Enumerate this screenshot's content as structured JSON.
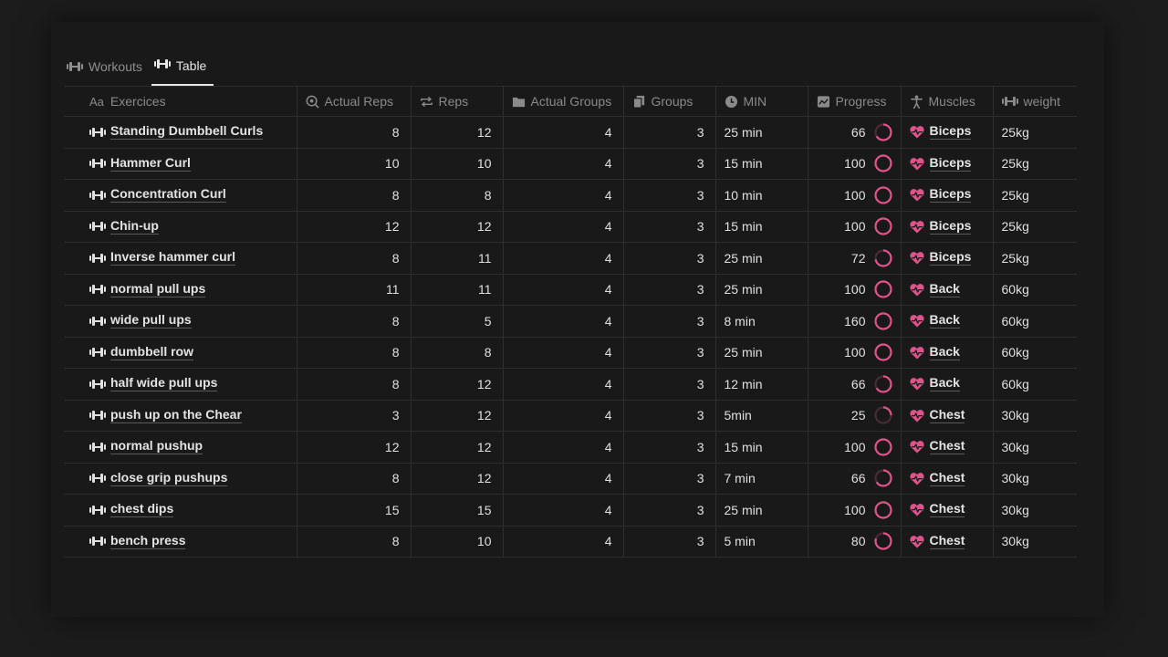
{
  "tabs": [
    {
      "label": "Workouts",
      "icon": "dumbbell-icon",
      "active": false
    },
    {
      "label": "Table",
      "icon": "dumbbell-icon",
      "active": true
    }
  ],
  "columns": {
    "name": {
      "prefix": "Aa",
      "label": "Exercices"
    },
    "actual_reps": {
      "label": "Actual Reps",
      "icon": "target-search-icon"
    },
    "reps": {
      "label": "Reps",
      "icon": "repeat-icon"
    },
    "actual_groups": {
      "label": "Actual Groups",
      "icon": "folder-icon"
    },
    "groups": {
      "label": "Groups",
      "icon": "copy-files-icon"
    },
    "min": {
      "label": "MIN",
      "icon": "clock-icon"
    },
    "progress": {
      "label": "Progress",
      "icon": "chart-box-icon"
    },
    "muscles": {
      "label": "Muscles",
      "icon": "person-icon"
    },
    "weight": {
      "label": "weight",
      "icon": "dumbbell-icon"
    }
  },
  "colors": {
    "accent_pink": "#e0538a",
    "ring_track": "#4a2a36"
  },
  "rows": [
    {
      "name": " Standing Dumbbell Curls",
      "actual_reps": "8",
      "reps": "12",
      "actual_groups": "4",
      "groups": "3",
      "min": "25  min",
      "progress": "66",
      "progress_fraction": 0.66,
      "muscle": "Biceps",
      "weight": "25kg"
    },
    {
      "name": "Hammer Curl",
      "actual_reps": "10",
      "reps": "10",
      "actual_groups": "4",
      "groups": "3",
      "min": "15  min",
      "progress": "100",
      "progress_fraction": 1.0,
      "muscle": "Biceps",
      "weight": "25kg"
    },
    {
      "name": "Concentration Curl",
      "actual_reps": "8",
      "reps": "8",
      "actual_groups": "4",
      "groups": "3",
      "min": "10  min",
      "progress": "100",
      "progress_fraction": 1.0,
      "muscle": "Biceps",
      "weight": "25kg"
    },
    {
      "name": "Chin-up",
      "actual_reps": "12",
      "reps": "12",
      "actual_groups": "4",
      "groups": "3",
      "min": "15  min",
      "progress": "100",
      "progress_fraction": 1.0,
      "muscle": "Biceps",
      "weight": "25kg"
    },
    {
      "name": "Inverse hammer curl",
      "actual_reps": "8",
      "reps": "11",
      "actual_groups": "4",
      "groups": "3",
      "min": "25  min",
      "progress": "72",
      "progress_fraction": 0.72,
      "muscle": "Biceps",
      "weight": "25kg"
    },
    {
      "name": "normal pull ups",
      "actual_reps": "11",
      "reps": "11",
      "actual_groups": "4",
      "groups": "3",
      "min": "25  min",
      "progress": "100",
      "progress_fraction": 1.0,
      "muscle": "Back",
      "weight": "60kg"
    },
    {
      "name": " wide pull ups",
      "actual_reps": "8",
      "reps": "5",
      "actual_groups": "4",
      "groups": "3",
      "min": "8  min",
      "progress": "160",
      "progress_fraction": 1.0,
      "muscle": "Back",
      "weight": "60kg"
    },
    {
      "name": "dumbbell row",
      "actual_reps": "8",
      "reps": "8",
      "actual_groups": "4",
      "groups": "3",
      "min": "25  min",
      "progress": "100",
      "progress_fraction": 1.0,
      "muscle": "Back",
      "weight": "60kg"
    },
    {
      "name": "half wide pull ups",
      "actual_reps": "8",
      "reps": "12",
      "actual_groups": "4",
      "groups": "3",
      "min": "12  min",
      "progress": "66",
      "progress_fraction": 0.66,
      "muscle": "Back",
      "weight": "60kg"
    },
    {
      "name": "push up on the Chear",
      "actual_reps": "3",
      "reps": "12",
      "actual_groups": "4",
      "groups": "3",
      "min": "5min",
      "progress": "25",
      "progress_fraction": 0.25,
      "muscle": "Chest",
      "weight": "30kg"
    },
    {
      "name": "normal pushup",
      "actual_reps": "12",
      "reps": "12",
      "actual_groups": "4",
      "groups": "3",
      "min": "15  min",
      "progress": "100",
      "progress_fraction": 1.0,
      "muscle": "Chest",
      "weight": "30kg"
    },
    {
      "name": " close grip pushups",
      "actual_reps": "8",
      "reps": "12",
      "actual_groups": "4",
      "groups": "3",
      "min": "7  min",
      "progress": "66",
      "progress_fraction": 0.66,
      "muscle": "Chest",
      "weight": "30kg"
    },
    {
      "name": "chest dips",
      "actual_reps": "15",
      "reps": "15",
      "actual_groups": "4",
      "groups": "3",
      "min": "25  min",
      "progress": "100",
      "progress_fraction": 1.0,
      "muscle": "Chest",
      "weight": "30kg"
    },
    {
      "name": "bench press",
      "actual_reps": "8",
      "reps": "10",
      "actual_groups": "4",
      "groups": "3",
      "min": "5  min",
      "progress": "80",
      "progress_fraction": 0.8,
      "muscle": "Chest",
      "weight": "30kg"
    }
  ]
}
